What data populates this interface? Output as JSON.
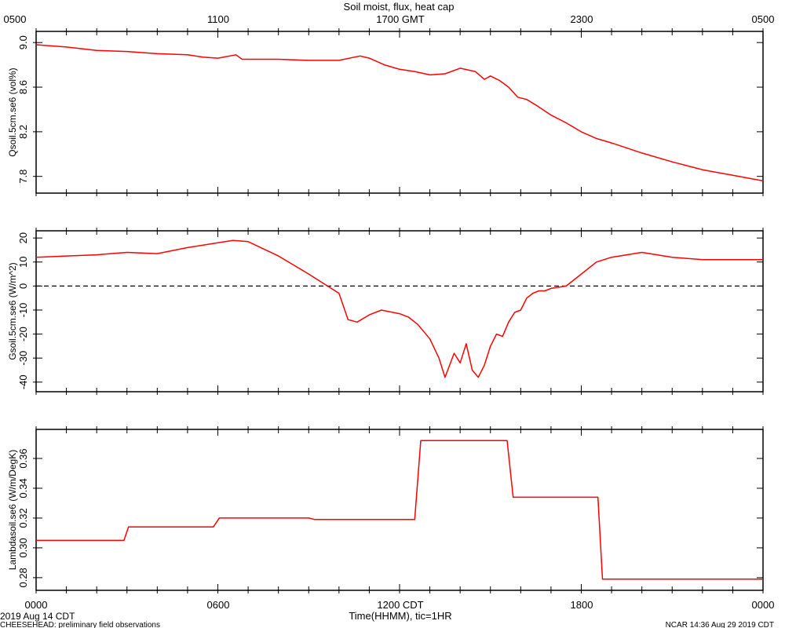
{
  "title": "Soil moist, flux, heat cap",
  "top_axis": {
    "ticks": [
      "0500",
      "1100",
      "1700 GMT",
      "2300",
      "0500"
    ]
  },
  "bottom_axis": {
    "ticks": [
      "0000",
      "0600",
      "1200 CDT",
      "1800",
      "0000"
    ],
    "label": "Time(HHMM), tic=1HR"
  },
  "footer": {
    "date": "2019 Aug 14 CDT",
    "project": "CHEESEHEAD: preliminary field observations",
    "stamp": "NCAR 14:36 Aug 29 2019 CDT"
  },
  "colors": {
    "line": "#ff0000",
    "axis": "#000000",
    "zero_line": "#000000"
  },
  "chart_data": [
    {
      "type": "line",
      "ylabel": "Qsoil.5cm.se6 (vol%)",
      "ylim": [
        7.65,
        9.1
      ],
      "yticks": [
        7.8,
        8.2,
        8.6,
        9.0
      ],
      "ytick_labels": [
        "7.8",
        "8.2",
        "8.6",
        "9.0"
      ],
      "xlim": [
        0,
        24
      ],
      "x": [
        0,
        1,
        2,
        3,
        4,
        5,
        5.5,
        6,
        6.6,
        6.8,
        7,
        7.5,
        8,
        9,
        10,
        10.7,
        11,
        11.5,
        12,
        12.5,
        13,
        13.5,
        14,
        14.5,
        14.8,
        15,
        15.3,
        15.6,
        15.9,
        16.2,
        16.5,
        17,
        17.5,
        18,
        18.5,
        19,
        20,
        21,
        22,
        23,
        24
      ],
      "y": [
        8.98,
        8.96,
        8.93,
        8.92,
        8.9,
        8.89,
        8.87,
        8.86,
        8.89,
        8.85,
        8.85,
        8.85,
        8.85,
        8.84,
        8.84,
        8.88,
        8.86,
        8.8,
        8.76,
        8.74,
        8.71,
        8.72,
        8.77,
        8.74,
        8.67,
        8.7,
        8.66,
        8.6,
        8.51,
        8.49,
        8.44,
        8.35,
        8.28,
        8.2,
        8.14,
        8.1,
        8.01,
        7.93,
        7.86,
        7.81,
        7.76
      ]
    },
    {
      "type": "line",
      "ylabel": "Gsoil.5cm.se6 (W/m^2)",
      "ylim": [
        -44,
        23
      ],
      "yticks": [
        -40,
        -30,
        -20,
        -10,
        0,
        10,
        20
      ],
      "ytick_labels": [
        "-40",
        "-30",
        "-20",
        "-10",
        "0",
        "10",
        "20"
      ],
      "xlim": [
        0,
        24
      ],
      "reference_line": 0,
      "x": [
        0,
        1,
        2,
        3,
        4,
        5,
        6,
        6.5,
        7,
        8,
        9,
        10,
        10.3,
        10.6,
        11,
        11.4,
        12,
        12.3,
        12.6,
        13,
        13.3,
        13.5,
        13.8,
        14,
        14.2,
        14.4,
        14.6,
        14.8,
        15,
        15.2,
        15.4,
        15.6,
        15.8,
        16,
        16.2,
        16.4,
        16.6,
        16.8,
        17,
        17.5,
        18,
        18.5,
        19,
        20,
        21,
        22,
        23,
        24
      ],
      "y": [
        12,
        12.5,
        13,
        14,
        13.5,
        16,
        18,
        19,
        18.5,
        12.5,
        5,
        -3,
        -14,
        -15,
        -12,
        -10,
        -11.5,
        -13,
        -16,
        -22,
        -30,
        -38,
        -28,
        -32,
        -24,
        -35,
        -38,
        -33,
        -25,
        -20,
        -21,
        -15,
        -11,
        -10,
        -5,
        -3,
        -2,
        -2,
        -1,
        0,
        5,
        10,
        12,
        14,
        12,
        11,
        11,
        11
      ]
    },
    {
      "type": "line",
      "ylabel": "Lambdasoil.se6 (W/m/DegK)",
      "ylim": [
        0.2715,
        0.3795
      ],
      "yticks": [
        0.28,
        0.3,
        0.32,
        0.34,
        0.36
      ],
      "ytick_labels": [
        "0.28",
        "0.30",
        "0.32",
        "0.34",
        "0.36"
      ],
      "xlim": [
        0,
        24
      ],
      "x": [
        0,
        2.9,
        3.05,
        5.85,
        6.05,
        9.0,
        9.2,
        12.5,
        12.7,
        15.55,
        15.75,
        18.55,
        18.7,
        24
      ],
      "y": [
        0.305,
        0.305,
        0.314,
        0.314,
        0.32,
        0.32,
        0.319,
        0.319,
        0.372,
        0.372,
        0.334,
        0.334,
        0.279,
        0.279
      ]
    }
  ]
}
